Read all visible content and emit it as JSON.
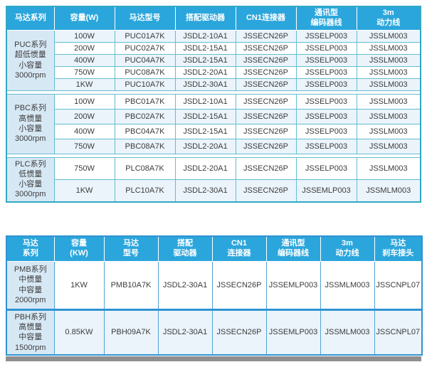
{
  "colors": {
    "header_bg": "#2BA6DC",
    "header_text": "#FFFFFF",
    "table1_border_outer": "#30A9C4",
    "table1_border_inner": "#62BDD0",
    "table2_border_outer": "#2F93D2",
    "table2_border_inner": "#4FA3D4",
    "series_cell_bg": "#D7E8F5",
    "tint_row_bg": "#EBF4FB",
    "body_text": "#3C3C3C",
    "bottom_strip_gray": "#8F8F8F"
  },
  "table1": {
    "headers": [
      "马达系列",
      "容量(W)",
      "马达型号",
      "搭配驱动器",
      "CN1连接器",
      "通讯型\n编码器线",
      "3m\n动力线"
    ],
    "groups": [
      {
        "series": "PUC系列\n超低惯量\n小容量\n3000rpm",
        "rows": [
          [
            "100W",
            "PUC01A7K",
            "JSDL2-10A1",
            "JSSECN26P",
            "JSSELP003",
            "JSSLM003"
          ],
          [
            "200W",
            "PUC02A7K",
            "JSDL2-15A1",
            "JSSECN26P",
            "JSSELP003",
            "JSSLM003"
          ],
          [
            "400W",
            "PUC04A7K",
            "JSDL2-15A1",
            "JSSECN26P",
            "JSSELP003",
            "JSSLM003"
          ],
          [
            "750W",
            "PUC08A7K",
            "JSDL2-20A1",
            "JSSECN26P",
            "JSSELP003",
            "JSSLM003"
          ],
          [
            "1KW",
            "PUC10A7K",
            "JSDL2-30A1",
            "JSSECN26P",
            "JSSELP003",
            "JSSLM003"
          ]
        ]
      },
      {
        "series": "PBC系列\n高惯量\n小容量\n3000rpm",
        "rows": [
          [
            "100W",
            "PBC01A7K",
            "JSDL2-10A1",
            "JSSECN26P",
            "JSSELP003",
            "JSSLM003"
          ],
          [
            "200W",
            "PBC02A7K",
            "JSDL2-15A1",
            "JSSECN26P",
            "JSSELP003",
            "JSSLM003"
          ],
          [
            "400W",
            "PBC04A7K",
            "JSDL2-15A1",
            "JSSECN26P",
            "JSSELP003",
            "JSSLM003"
          ],
          [
            "750W",
            "PBC08A7K",
            "JSDL2-20A1",
            "JSSECN26P",
            "JSSELP003",
            "JSSLM003"
          ]
        ]
      },
      {
        "series": "PLC系列\n低惯量\n小容量\n3000rpm",
        "rows": [
          [
            "750W",
            "PLC08A7K",
            "JSDL2-20A1",
            "JSSECN26P",
            "JSSELP003",
            "JSSLM003"
          ],
          [
            "1KW",
            "PLC10A7K",
            "JSDL2-30A1",
            "JSSECN26P",
            "JSSEMLP003",
            "JSSMLM003"
          ]
        ]
      }
    ]
  },
  "table2": {
    "headers": [
      "马达\n系列",
      "容量\n(KW)",
      "马达\n型号",
      "搭配\n驱动器",
      "CN1\n连接器",
      "通讯型\n编码器线",
      "3m\n动力线",
      "马达\n刹车接头"
    ],
    "groups": [
      {
        "series": "PMB系列\n中惯量\n中容量\n2000rpm",
        "rows": [
          [
            "1KW",
            "PMB10A7K",
            "JSDL2-30A1",
            "JSSECN26P",
            "JSSEMLP003",
            "JSSMLM003",
            "JSSCNPL07"
          ]
        ]
      },
      {
        "series": "PBH系列\n高惯量\n中容量\n1500rpm",
        "rows": [
          [
            "0.85KW",
            "PBH09A7K",
            "JSDL2-30A1",
            "JSSECN26P",
            "JSSEMLP003",
            "JSSMLM003",
            "JSSCNPL07"
          ]
        ]
      }
    ]
  }
}
